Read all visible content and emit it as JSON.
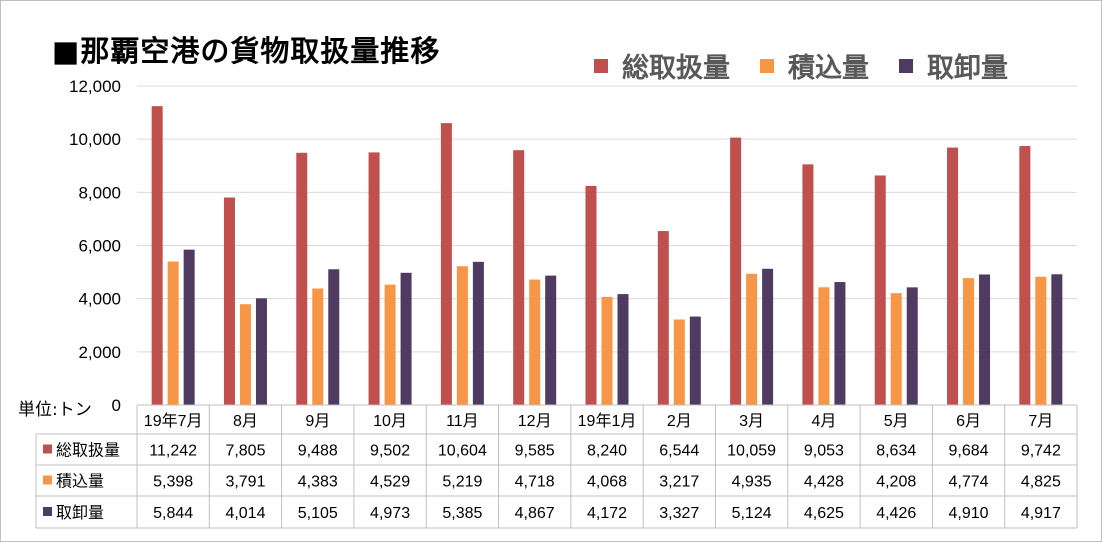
{
  "title": "■那覇空港の貨物取扱量推移",
  "unit_label": "単位:トン",
  "legend": [
    {
      "label": "総取扱量",
      "color": "#c0504d"
    },
    {
      "label": "積込量",
      "color": "#f79646"
    },
    {
      "label": "取卸量",
      "color": "#4f3b62"
    }
  ],
  "chart_data": {
    "type": "bar",
    "title": "■那覇空港の貨物取扱量推移",
    "ylabel": "単位:トン",
    "ylim": [
      0,
      12000
    ],
    "yticks": [
      "0",
      "2,000",
      "4,000",
      "6,000",
      "8,000",
      "10,000",
      "12,000"
    ],
    "grid": true,
    "legend_position": "top-right",
    "categories": [
      "19年7月",
      "8月",
      "9月",
      "10月",
      "11月",
      "12月",
      "19年1月",
      "2月",
      "3月",
      "4月",
      "5月",
      "6月",
      "7月"
    ],
    "series": [
      {
        "name": "総取扱量",
        "color": "#c0504d",
        "values": [
          11242,
          7805,
          9488,
          9502,
          10604,
          9585,
          8240,
          6544,
          10059,
          9053,
          8634,
          9684,
          9742
        ],
        "labels": [
          "11,242",
          "7,805",
          "9,488",
          "9,502",
          "10,604",
          "9,585",
          "8,240",
          "6,544",
          "10,059",
          "9,053",
          "8,634",
          "9,684",
          "9,742"
        ]
      },
      {
        "name": "積込量",
        "color": "#f79646",
        "values": [
          5398,
          3791,
          4383,
          4529,
          5219,
          4718,
          4068,
          3217,
          4935,
          4428,
          4208,
          4774,
          4825
        ],
        "labels": [
          "5,398",
          "3,791",
          "4,383",
          "4,529",
          "5,219",
          "4,718",
          "4,068",
          "3,217",
          "4,935",
          "4,428",
          "4,208",
          "4,774",
          "4,825"
        ]
      },
      {
        "name": "取卸量",
        "color": "#4f3b62",
        "values": [
          5844,
          4014,
          5105,
          4973,
          5385,
          4867,
          4172,
          3327,
          5124,
          4625,
          4426,
          4910,
          4917
        ],
        "labels": [
          "5,844",
          "4,014",
          "5,105",
          "4,973",
          "5,385",
          "4,867",
          "4,172",
          "3,327",
          "5,124",
          "4,625",
          "4,426",
          "4,910",
          "4,917"
        ]
      }
    ]
  }
}
